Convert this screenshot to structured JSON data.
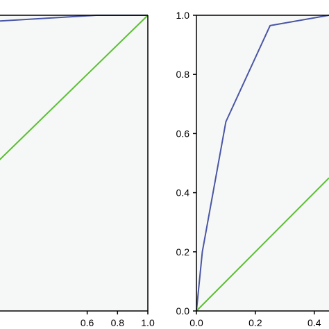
{
  "colors": {
    "page_bg": "#ffffff",
    "plot_bg": "#f6f8f7",
    "roc": "#4a56a4",
    "diagonal": "#5bbf33",
    "axis": "#000000"
  },
  "chart_data": [
    {
      "type": "line",
      "title": "",
      "xlabel": "",
      "ylabel": "",
      "xlim": [
        -0.03,
        1.0
      ],
      "ylim": [
        0.0,
        1.0
      ],
      "x_tick_labels": [
        "0.6",
        "0.8",
        "1.0"
      ],
      "x_tick_values": [
        0.6,
        0.8,
        1.0
      ],
      "grid": false,
      "series": [
        {
          "values_x": [
            0.0,
            0.66,
            1.0
          ],
          "values_y": [
            0.98,
            1.0,
            1.0
          ],
          "color_key": "roc"
        },
        {
          "values_x": [
            0.0,
            1.0
          ],
          "values_y": [
            0.5,
            1.0
          ],
          "color_key": "diagonal"
        }
      ]
    },
    {
      "type": "line",
      "title": "",
      "xlabel": "",
      "ylabel": "",
      "xlim": [
        0.0,
        0.45
      ],
      "ylim": [
        0.0,
        1.0
      ],
      "x_tick_labels": [
        "0.0",
        "0.2",
        "0.4"
      ],
      "x_tick_values": [
        0.0,
        0.2,
        0.4
      ],
      "y_tick_labels": [
        "0.0",
        "0.2",
        "0.4",
        "0.6",
        "0.8",
        "1.0"
      ],
      "y_tick_values": [
        0.0,
        0.2,
        0.4,
        0.6,
        0.8,
        1.0
      ],
      "grid": false,
      "series": [
        {
          "values_x": [
            0.0,
            0.02,
            0.1,
            0.25,
            0.45
          ],
          "values_y": [
            0.0,
            0.2,
            0.64,
            0.965,
            1.0
          ],
          "color_key": "roc"
        },
        {
          "values_x": [
            0.0,
            0.45
          ],
          "values_y": [
            0.0,
            0.45
          ],
          "color_key": "diagonal"
        }
      ]
    }
  ]
}
